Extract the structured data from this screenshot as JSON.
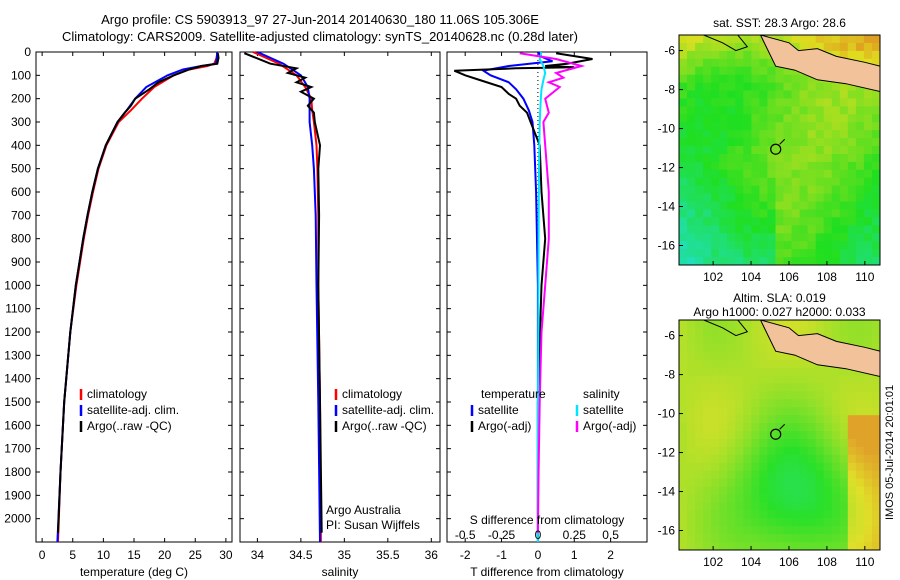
{
  "header": {
    "title_line1": "Argo profile: CS 5903913_97 27-Jun-2014 20140630_180 11.06S 105.306E",
    "title_line2": "Climatology: CARS2009. Satellite-adjusted climatology: synTS_20140628.nc (0.28d later)"
  },
  "side_label": "IMOS 05-Jul-2014 20:01:01",
  "colors": {
    "climatology": "#ff0000",
    "satellite": "#0000ff",
    "argo": "#000000",
    "sat_salinity": "#00e5ff",
    "argo_salinity": "#ff00ff",
    "land": "#f2c29b"
  },
  "chart_data": [
    {
      "type": "line",
      "xlabel": "temperature (deg C)",
      "ylim": [
        2100,
        0
      ],
      "xlim": [
        -1,
        31
      ],
      "xticks": [
        0,
        5,
        10,
        15,
        20,
        25,
        30
      ],
      "yticks": [
        0,
        100,
        200,
        300,
        400,
        500,
        600,
        700,
        800,
        900,
        1000,
        1100,
        1200,
        1300,
        1400,
        1500,
        1600,
        1700,
        1800,
        1900,
        2000
      ],
      "legend": [
        "climatology",
        "satellite-adj. clim.",
        "Argo(..raw -QC)"
      ],
      "series": [
        {
          "key": "climatology",
          "depth": [
            0,
            25,
            50,
            60,
            75,
            100,
            150,
            200,
            250,
            300,
            400,
            500,
            600,
            700,
            800,
            1000,
            1200,
            1500,
            1800,
            2100
          ],
          "values": [
            28.6,
            28.5,
            28.1,
            27,
            24,
            21.5,
            18.3,
            16.3,
            14.5,
            12.5,
            10.5,
            9.2,
            8.3,
            7.5,
            6.8,
            5.6,
            4.6,
            3.6,
            3,
            2.6
          ]
        },
        {
          "key": "satellite",
          "depth": [
            0,
            25,
            50,
            60,
            75,
            100,
            150,
            200,
            250,
            300,
            400,
            500,
            600,
            700,
            800,
            1000,
            1200,
            1500,
            1800,
            2100
          ],
          "values": [
            28.6,
            28.5,
            28.4,
            26,
            23,
            20.5,
            17,
            15.2,
            13.8,
            12.3,
            10.4,
            9.1,
            8.2,
            7.4,
            6.7,
            5.5,
            4.6,
            3.6,
            3,
            2.5
          ]
        },
        {
          "key": "argo",
          "depth": [
            5,
            25,
            50,
            60,
            75,
            100,
            130,
            160,
            200,
            230,
            260,
            300,
            400,
            500,
            600,
            700,
            800,
            1000,
            1200,
            1500,
            1800,
            2060
          ],
          "values": [
            28.7,
            28.8,
            28.6,
            26,
            24,
            21.5,
            19,
            17.5,
            15.2,
            14.5,
            13.5,
            12.3,
            10.4,
            9.1,
            8.2,
            7.4,
            6.7,
            5.5,
            4.6,
            3.6,
            3,
            2.6
          ]
        }
      ]
    },
    {
      "type": "line",
      "xlabel": "salinity",
      "ylim": [
        2100,
        0
      ],
      "xlim": [
        33.8,
        36.1
      ],
      "xticks": [
        34,
        34.5,
        35,
        35.5,
        36
      ],
      "legend": [
        "climatology",
        "satellite-adj. clim.",
        "Argo(..raw -QC)"
      ],
      "annotations": [
        "Argo Australia",
        "PI: Susan Wijffels"
      ],
      "series": [
        {
          "key": "climatology",
          "depth": [
            0,
            50,
            100,
            150,
            200,
            250,
            300,
            400,
            500,
            700,
            1000,
            1500,
            2100
          ],
          "values": [
            33.95,
            34.25,
            34.45,
            34.55,
            34.62,
            34.63,
            34.65,
            34.68,
            34.69,
            34.7,
            34.7,
            34.72,
            34.73
          ]
        },
        {
          "key": "satellite",
          "depth": [
            0,
            50,
            100,
            150,
            200,
            250,
            300,
            400,
            500,
            700,
            1000,
            1500,
            2100
          ],
          "values": [
            34.0,
            34.3,
            34.5,
            34.58,
            34.6,
            34.6,
            34.6,
            34.63,
            34.65,
            34.67,
            34.68,
            34.7,
            34.72
          ]
        },
        {
          "key": "argo",
          "depth": [
            5,
            50,
            70,
            90,
            110,
            130,
            150,
            170,
            200,
            230,
            260,
            300,
            400,
            500,
            700,
            1000,
            1500,
            2060
          ],
          "values": [
            33.85,
            34.15,
            34.45,
            34.35,
            34.55,
            34.45,
            34.62,
            34.5,
            34.65,
            34.58,
            34.65,
            34.66,
            34.72,
            34.7,
            34.71,
            34.7,
            34.72,
            34.74
          ]
        }
      ]
    },
    {
      "type": "line",
      "xlabel": "T difference from climatology",
      "xlabel_top": "S difference from climatology",
      "ylim": [
        2100,
        0
      ],
      "xlim": [
        -2.5,
        3
      ],
      "xticks": [
        -2,
        -1,
        0,
        1,
        2
      ],
      "xticks_top": [
        "-0.5",
        "-0.25",
        "0",
        "0.25",
        "0.5"
      ],
      "xticks_top_pos": [
        -2,
        -1,
        0,
        1,
        2
      ],
      "legend_heading": [
        "temperature",
        "salinity"
      ],
      "legend": [
        "satellite",
        "Argo(-adj)",
        "satellite",
        "Argo(-adj)"
      ],
      "series": [
        {
          "key": "sat_T",
          "depth": [
            0,
            20,
            40,
            60,
            80,
            100,
            130,
            160,
            200,
            250,
            300,
            400,
            600,
            1000,
            1500,
            2100
          ],
          "values": [
            0,
            0.1,
            0.4,
            -0.8,
            -1.5,
            -1.3,
            -0.8,
            -0.6,
            -0.4,
            -0.25,
            -0.15,
            -0.1,
            -0.05,
            0,
            0,
            0
          ]
        },
        {
          "key": "argo_T",
          "depth": [
            5,
            30,
            50,
            60,
            65,
            70,
            80,
            100,
            120,
            150,
            180,
            200,
            230,
            260,
            300,
            400,
            600,
            800,
            1000,
            1500,
            2060
          ],
          "values": [
            0.5,
            1.5,
            0.8,
            0.2,
            1.0,
            -0.6,
            -2.3,
            -2.0,
            -1.6,
            -1.0,
            -0.8,
            -0.6,
            -0.5,
            -0.3,
            -0.2,
            0.05,
            0.1,
            0.2,
            0.1,
            0,
            0
          ]
        },
        {
          "key": "sat_S",
          "depth": [
            0,
            30,
            60,
            90,
            120,
            160,
            200,
            300,
            500,
            800,
            1200,
            1600,
            2100
          ],
          "values": [
            0.1,
            0.05,
            0.15,
            0.2,
            0.15,
            0.1,
            0.08,
            0.05,
            0.03,
            0.02,
            0.01,
            0,
            0
          ]
        },
        {
          "key": "argo_S",
          "depth": [
            5,
            30,
            60,
            90,
            110,
            130,
            150,
            200,
            260,
            300,
            400,
            600,
            800,
            1000,
            1200,
            1500,
            1800,
            2060
          ],
          "values": [
            -0.5,
            0.5,
            1.2,
            0.5,
            0.7,
            0.3,
            0.6,
            0.2,
            0.3,
            0.15,
            0.2,
            0.3,
            0.3,
            0.2,
            0.1,
            0.05,
            0.02,
            0
          ]
        }
      ]
    },
    {
      "type": "heatmap",
      "title": "sat. SST: 28.3  Argo: 28.6",
      "xlim": [
        100.2,
        110.8
      ],
      "ylim": [
        -17,
        -5.2
      ],
      "xticks": [
        102,
        104,
        106,
        108,
        110
      ],
      "yticks": [
        -6,
        -8,
        -10,
        -12,
        -14,
        -16
      ],
      "marker": {
        "lon": 105.3,
        "lat": -11.06
      }
    },
    {
      "type": "heatmap",
      "title_line1": "Altim. SLA: 0.019",
      "title_line2": "Argo h1000: 0.027 h2000: 0.033",
      "xlim": [
        100.2,
        110.8
      ],
      "ylim": [
        -17,
        -5.2
      ],
      "xticks": [
        102,
        104,
        106,
        108,
        110
      ],
      "yticks": [
        -6,
        -8,
        -10,
        -12,
        -14,
        -16
      ],
      "marker": {
        "lon": 105.3,
        "lat": -11.06
      }
    }
  ]
}
